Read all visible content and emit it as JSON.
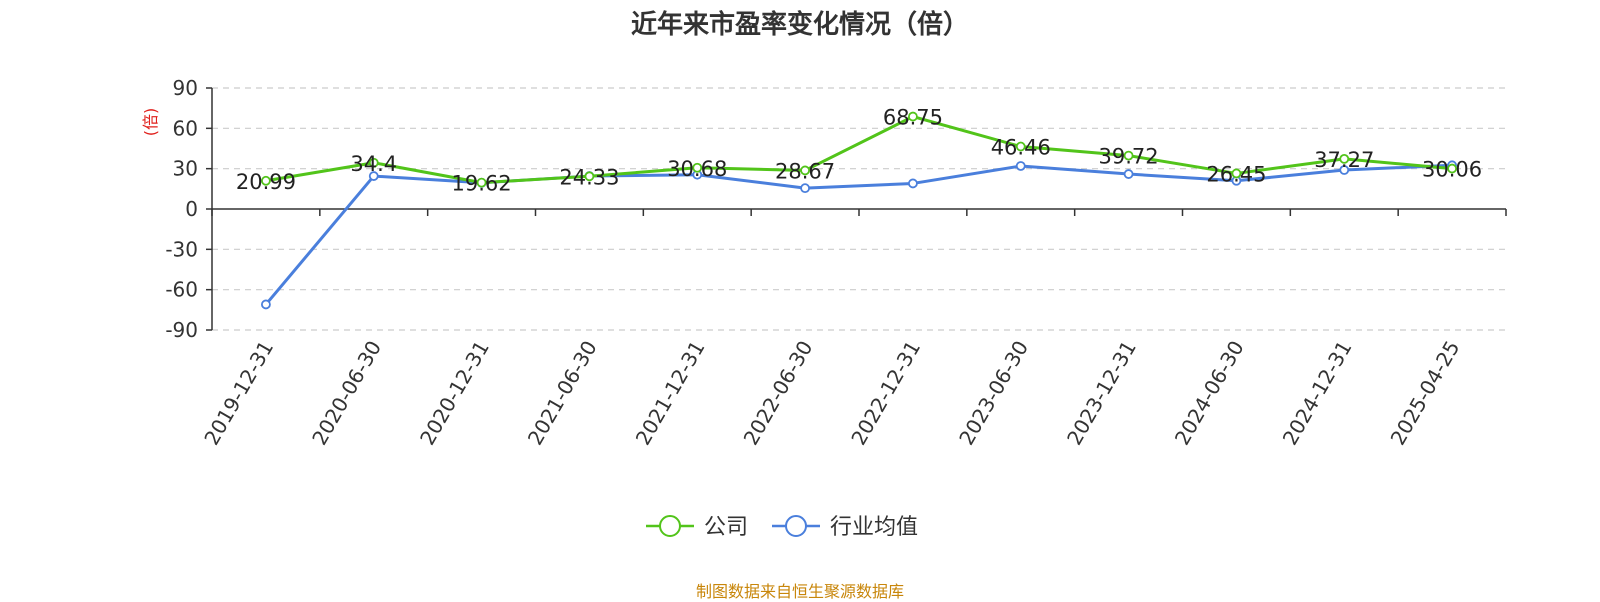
{
  "chart_data": {
    "type": "line",
    "title": "近年来市盈率变化情况（倍）",
    "ylabel": "(倍)",
    "xlabel": "",
    "categories": [
      "2019-12-31",
      "2020-06-30",
      "2020-12-31",
      "2021-06-30",
      "2021-12-31",
      "2022-06-30",
      "2022-12-31",
      "2023-06-30",
      "2023-12-31",
      "2024-06-30",
      "2024-12-31",
      "2025-04-25"
    ],
    "ylim": [
      -90,
      90
    ],
    "yticks": [
      90,
      60,
      30,
      0,
      -30,
      -60,
      -90
    ],
    "grid": true,
    "legend_position": "bottom-center",
    "series": [
      {
        "name": "公司",
        "color": "#52c41a",
        "values": [
          20.99,
          34.4,
          19.62,
          24.33,
          30.68,
          28.67,
          68.75,
          46.46,
          39.72,
          26.45,
          37.27,
          30.06
        ],
        "labels": [
          "20.99",
          "34.4",
          "19.62",
          "24.33",
          "30.68",
          "28.67",
          "68.75",
          "46.46",
          "39.72",
          "26.45",
          "37.27",
          "30.06"
        ]
      },
      {
        "name": "行业均值",
        "color": "#4a7fdc",
        "values": [
          -71,
          24.5,
          19.5,
          24.5,
          25.5,
          15.5,
          19,
          32,
          26,
          21,
          29,
          32.5
        ]
      }
    ]
  },
  "source_note": "制图数据来自恒生聚源数据库"
}
